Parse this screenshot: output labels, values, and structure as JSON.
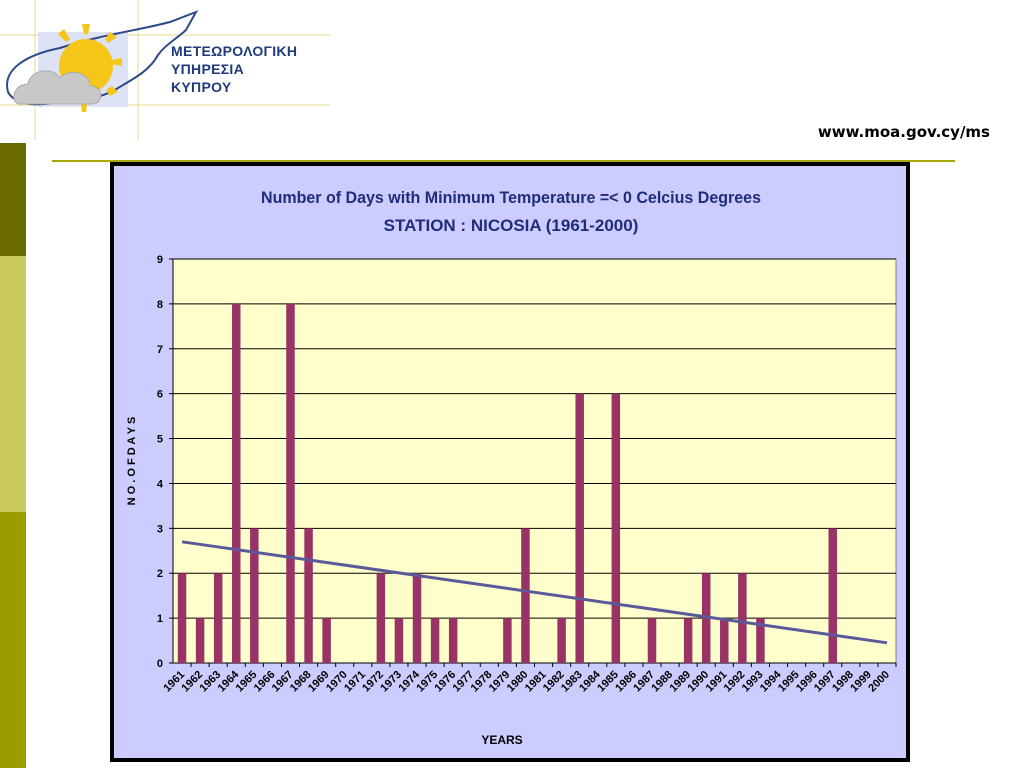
{
  "header": {
    "org_lines": [
      "ΜΕΤΕΩΡΟΛΟΓΙΚΗ",
      "ΥΠΗΡΕΣΙΑ",
      "ΚΥΠΡΟΥ"
    ],
    "website": "www.moa.gov.cy/ms"
  },
  "colors": {
    "bar": "#993366",
    "trend": "#5a5a9a",
    "plot_bg": "#ffffcc",
    "chart_bg": "#ccccff",
    "title": "#1f2d7a"
  },
  "chart_data": {
    "type": "bar",
    "title": "Number of Days with Minimum Temperature =< 0 Celcius Degrees",
    "subtitle": "STATION : NICOSIA (1961-2000)",
    "xlabel": "YEARS",
    "ylabel": "N O . O F D A Y S",
    "ylim": [
      0,
      9
    ],
    "yticks": [
      0,
      1,
      2,
      3,
      4,
      5,
      6,
      7,
      8,
      9
    ],
    "grid": true,
    "categories": [
      "1961",
      "1962",
      "1963",
      "1964",
      "1965",
      "1966",
      "1967",
      "1968",
      "1969",
      "1970",
      "1971",
      "1972",
      "1973",
      "1974",
      "1975",
      "1976",
      "1977",
      "1978",
      "1979",
      "1980",
      "1981",
      "1982",
      "1983",
      "1984",
      "1985",
      "1986",
      "1987",
      "1988",
      "1989",
      "1990",
      "1991",
      "1992",
      "1993",
      "1994",
      "1995",
      "1996",
      "1997",
      "1998",
      "1999",
      "2000"
    ],
    "values": [
      2,
      1,
      2,
      8,
      3,
      0,
      8,
      3,
      1,
      0,
      0,
      2,
      1,
      2,
      1,
      1,
      0,
      0,
      1,
      3,
      0,
      1,
      6,
      0,
      6,
      0,
      1,
      0,
      1,
      2,
      1,
      2,
      1,
      0,
      0,
      0,
      3,
      0,
      0,
      0
    ],
    "trendline": {
      "type": "linear",
      "start": 2.7,
      "end": 0.45
    }
  }
}
